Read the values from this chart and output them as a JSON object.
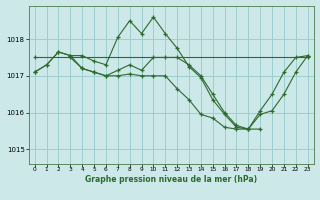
{
  "title": "Graphe pression niveau de la mer (hPa)",
  "bg_color": "#cce8e8",
  "grid_color": "#9ecece",
  "line_color": "#2d6a2d",
  "xlim": [
    -0.5,
    23.5
  ],
  "ylim": [
    1014.6,
    1018.9
  ],
  "yticks": [
    1015,
    1016,
    1017,
    1018
  ],
  "xticks": [
    0,
    1,
    2,
    3,
    4,
    5,
    6,
    7,
    8,
    9,
    10,
    11,
    12,
    13,
    14,
    15,
    16,
    17,
    18,
    19,
    20,
    21,
    22,
    23
  ],
  "series": [
    {
      "x": [
        0,
        1,
        2,
        3,
        4,
        5,
        6,
        7,
        8,
        9,
        10,
        11,
        12,
        13,
        14,
        15,
        16,
        17,
        18,
        19,
        20,
        21,
        22,
        23
      ],
      "y": [
        1017.1,
        1017.3,
        1017.65,
        1017.55,
        1017.55,
        1017.4,
        1017.3,
        1018.05,
        1018.5,
        1018.15,
        1018.6,
        1018.15,
        1017.75,
        1017.25,
        1016.95,
        1016.35,
        1015.95,
        1015.6,
        1015.55,
        1016.05,
        1016.5,
        1017.1,
        1017.5,
        1017.55
      ]
    },
    {
      "x": [
        0,
        1,
        2,
        3,
        4,
        5,
        6,
        7,
        8,
        9,
        10,
        11,
        12,
        13,
        14,
        15,
        16,
        17,
        18,
        19,
        20,
        21,
        22,
        23
      ],
      "y": [
        1017.1,
        1017.3,
        1017.65,
        1017.55,
        1017.2,
        1017.1,
        1017.0,
        1017.15,
        1017.3,
        1017.15,
        1017.5,
        1017.5,
        1017.5,
        1017.3,
        1017.0,
        1016.5,
        1016.0,
        1015.65,
        1015.55,
        1015.95,
        1016.05,
        1016.5,
        1017.1,
        1017.55
      ]
    },
    {
      "x": [
        0,
        23
      ],
      "y": [
        1017.5,
        1017.5
      ]
    },
    {
      "x": [
        3,
        4,
        5,
        6,
        7,
        8,
        9,
        10,
        11,
        12,
        13,
        14,
        15,
        16,
        17,
        18,
        19
      ],
      "y": [
        1017.5,
        1017.2,
        1017.1,
        1017.0,
        1017.0,
        1017.05,
        1017.0,
        1017.0,
        1017.0,
        1016.65,
        1016.35,
        1015.95,
        1015.85,
        1015.6,
        1015.55,
        1015.55,
        1015.55
      ]
    }
  ]
}
